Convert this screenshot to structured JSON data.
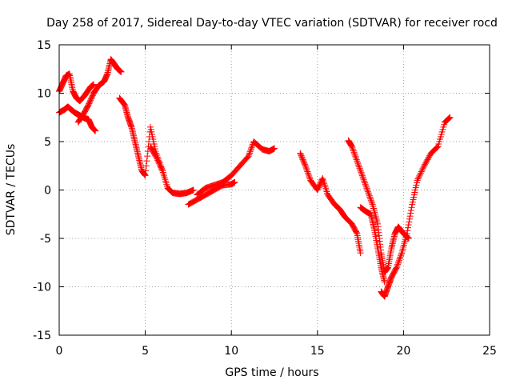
{
  "chart_data": {
    "type": "scatter",
    "title": "Day 258 of 2017, Sidereal Day-to-day VTEC variation (SDTVAR) for receiver rocd",
    "xlabel": "GPS time / hours",
    "ylabel": "SDTVAR / TECUs",
    "xlim": [
      0,
      25
    ],
    "ylim": [
      -15,
      15
    ],
    "xticks": [
      "0",
      "5",
      "10",
      "15",
      "20",
      "25"
    ],
    "yticks": [
      "-15",
      "-10",
      "-5",
      "0",
      "5",
      "10",
      "15"
    ],
    "grid": true,
    "marker": "plus",
    "color": "#ff0000",
    "series": [
      {
        "x": [
          0.0,
          0.2,
          0.4,
          0.6,
          0.8,
          1.0,
          1.2,
          1.5,
          1.8,
          2.0
        ],
        "y": [
          10.2,
          11.0,
          11.8,
          12.0,
          10.2,
          9.5,
          9.2,
          9.8,
          10.6,
          10.9
        ]
      },
      {
        "x": [
          0.0,
          0.3,
          0.5,
          0.7,
          0.9,
          1.1,
          1.3,
          1.5,
          1.7,
          1.9,
          2.1
        ],
        "y": [
          8.0,
          8.3,
          8.6,
          8.3,
          8.0,
          7.8,
          7.6,
          7.4,
          7.3,
          6.5,
          6.1
        ]
      },
      {
        "x": [
          1.1,
          1.4,
          1.7,
          2.0,
          2.3,
          2.6,
          2.8,
          3.0,
          3.2,
          3.4,
          3.6
        ],
        "y": [
          7.0,
          7.8,
          8.8,
          10.0,
          10.8,
          11.2,
          12.0,
          13.5,
          13.0,
          12.5,
          12.2
        ]
      },
      {
        "x": [
          3.5,
          3.8,
          4.0,
          4.2,
          4.4,
          4.6,
          4.8,
          5.0,
          5.3,
          5.6,
          6.0
        ],
        "y": [
          9.5,
          8.8,
          7.5,
          6.5,
          5.0,
          3.5,
          2.0,
          1.5,
          6.5,
          4.0,
          2.0
        ]
      },
      {
        "x": [
          5.3,
          5.6,
          6.0,
          6.3,
          6.6,
          7.0,
          7.4,
          7.8
        ],
        "y": [
          4.5,
          3.5,
          2.0,
          0.2,
          -0.3,
          -0.4,
          -0.3,
          0.0
        ]
      },
      {
        "x": [
          7.5,
          8.0,
          8.5,
          9.0,
          9.5,
          10.0,
          10.2
        ],
        "y": [
          -1.5,
          -1.0,
          -0.5,
          0.0,
          0.5,
          0.6,
          0.8
        ]
      },
      {
        "x": [
          8.0,
          8.5,
          9.0,
          9.5,
          10.0,
          10.5,
          11.0,
          11.3,
          11.8,
          12.2,
          12.5
        ],
        "y": [
          -0.5,
          0.2,
          0.5,
          0.8,
          1.5,
          2.5,
          3.5,
          5.0,
          4.2,
          4.0,
          4.3
        ]
      },
      {
        "x": [
          14.0,
          14.3,
          14.6,
          15.0,
          15.3,
          15.6,
          16.0,
          16.3,
          16.6,
          17.0,
          17.3,
          17.5
        ],
        "y": [
          3.8,
          2.5,
          1.0,
          0.0,
          1.2,
          -0.5,
          -1.5,
          -2.0,
          -2.8,
          -3.5,
          -4.5,
          -6.5
        ]
      },
      {
        "x": [
          17.5,
          17.8,
          18.1,
          18.3,
          18.5,
          18.7,
          18.9
        ],
        "y": [
          -1.8,
          -2.2,
          -2.5,
          -4.0,
          -6.0,
          -8.0,
          -9.5
        ]
      },
      {
        "x": [
          16.8,
          17.0,
          17.3,
          17.6,
          17.9,
          18.2,
          18.5,
          18.7,
          18.9,
          19.1,
          19.3,
          19.5,
          19.7,
          20.0,
          20.3
        ],
        "y": [
          5.1,
          4.5,
          3.0,
          1.5,
          0.0,
          -1.5,
          -3.5,
          -6.5,
          -8.5,
          -8.0,
          -6.0,
          -4.5,
          -3.8,
          -4.5,
          -5.0
        ]
      },
      {
        "x": [
          18.7,
          18.9,
          19.1,
          19.3,
          19.6,
          19.9,
          20.2,
          20.5,
          20.8,
          21.2,
          21.6,
          22.0,
          22.4,
          22.7
        ],
        "y": [
          -10.5,
          -11.0,
          -10.0,
          -9.0,
          -8.0,
          -6.5,
          -4.5,
          -1.5,
          1.0,
          2.5,
          3.8,
          4.5,
          7.0,
          7.5
        ]
      }
    ]
  }
}
